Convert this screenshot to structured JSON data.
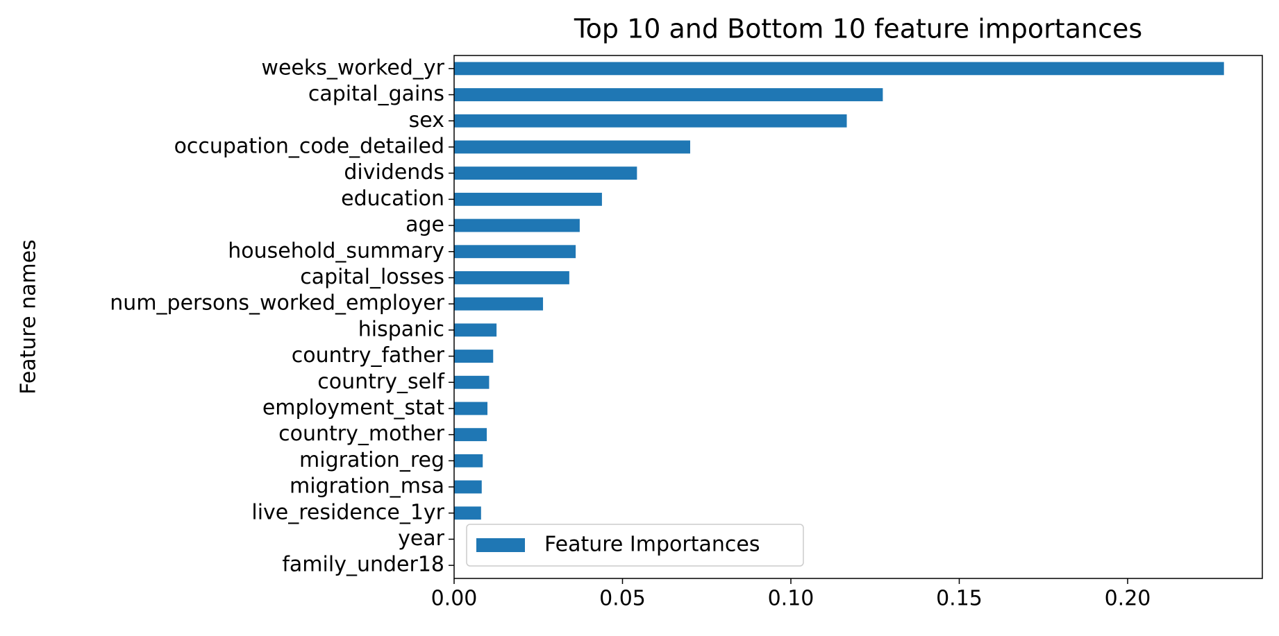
{
  "chart_data": {
    "type": "barh",
    "title": "Top 10 and Bottom 10 feature importances",
    "y_label": "Feature names",
    "categories": [
      "weeks_worked_yr",
      "capital_gains",
      "sex",
      "occupation_code_detailed",
      "dividends",
      "education",
      "age",
      "household_summary",
      "capital_losses",
      "num_persons_worked_employer",
      "hispanic",
      "country_father",
      "country_self",
      "employment_stat",
      "country_mother",
      "migration_reg",
      "migration_msa",
      "live_residence_1yr",
      "year",
      "family_under18"
    ],
    "series": [
      {
        "name": "Feature Importances",
        "color": "#1f77b4",
        "values": [
          0.2286,
          0.1273,
          0.1166,
          0.0701,
          0.0543,
          0.0439,
          0.0373,
          0.0361,
          0.0342,
          0.0264,
          0.0126,
          0.0116,
          0.0104,
          0.0099,
          0.0097,
          0.0085,
          0.0082,
          0.008,
          0,
          0
        ]
      }
    ],
    "xlim": [
      0,
      0.24
    ],
    "xticks": [
      {
        "value": 0,
        "label": "0.00"
      },
      {
        "value": 0.05,
        "label": "0.05"
      },
      {
        "value": 0.1,
        "label": "0.10"
      },
      {
        "value": 0.15,
        "label": "0.15"
      },
      {
        "value": 0.2,
        "label": "0.20"
      }
    ],
    "legend": "lower left"
  }
}
